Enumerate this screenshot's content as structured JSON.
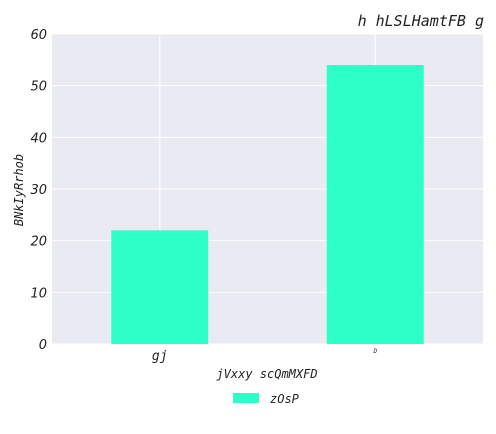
{
  "chart_data": {
    "type": "bar",
    "title": "h hLSLHamtFB g",
    "xlabel": "jVxxy scQmMXFD",
    "ylabel": "BNkIyRrhob",
    "categories": [
      "gj",
      "D"
    ],
    "series": [
      {
        "name": "zOsP",
        "values": [
          22,
          54
        ]
      }
    ],
    "ylim": [
      0,
      60
    ],
    "yticks": [
      0,
      10,
      20,
      30,
      40,
      50,
      60
    ],
    "grid": true,
    "legend": "bottom-center",
    "colors": {
      "bar": "#2effc9",
      "plot_background": "#eaeaf2",
      "grid": "#ffffff"
    }
  }
}
